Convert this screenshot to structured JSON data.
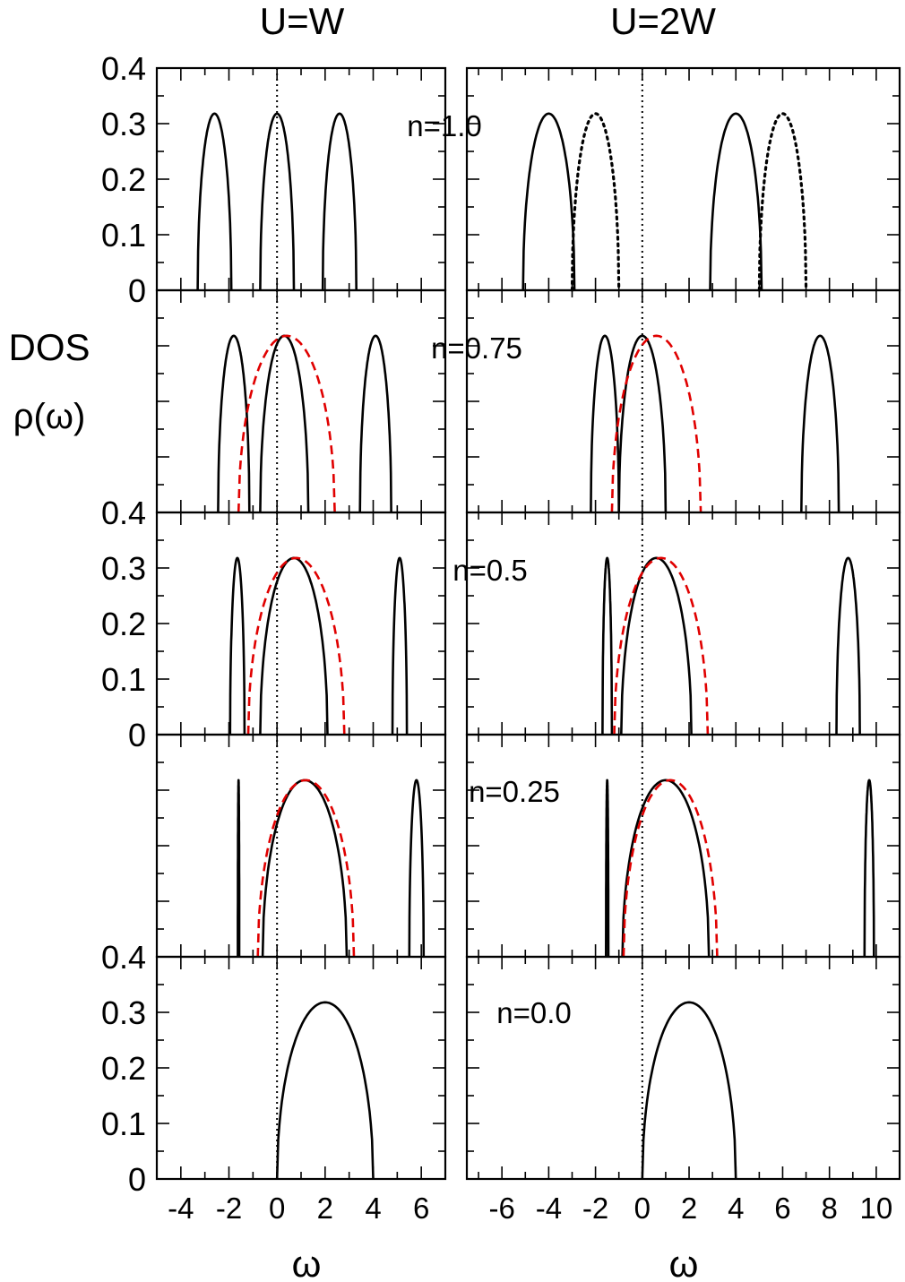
{
  "figure": {
    "y_axis_label_line1": "DOS",
    "y_axis_label_line2": "ρ(ω)",
    "x_axis_label": "ω"
  },
  "chart_data": [
    {
      "type": "line",
      "title": "U=W",
      "xlabel": "ω",
      "ylabel": "DOS ρ(ω)",
      "xlim": [
        -5.0,
        7.0
      ],
      "ylim": [
        0,
        0.4
      ],
      "x_ticks": [
        "-4",
        "-2",
        "0",
        "2",
        "4",
        "6"
      ],
      "y_ticks": [
        "0",
        "0.1",
        "0.2",
        "0.3",
        "0.4"
      ],
      "band_peak": 0.318,
      "panels": [
        {
          "label": "n=1.0",
          "bands": [
            {
              "style": "solid",
              "center": -2.6,
              "half_width": 0.7
            },
            {
              "style": "solid",
              "center": 0.0,
              "half_width": 0.7
            },
            {
              "style": "solid",
              "center": 2.6,
              "half_width": 0.7
            }
          ]
        },
        {
          "label": "n=0.75",
          "bands": [
            {
              "style": "solid",
              "center": -1.8,
              "half_width": 0.65
            },
            {
              "style": "solid",
              "center": 0.3,
              "half_width": 1.0
            },
            {
              "style": "solid",
              "center": 4.1,
              "half_width": 0.65
            },
            {
              "style": "dashed-red",
              "center": 0.4,
              "half_width": 2.0
            }
          ]
        },
        {
          "label": "n=0.5",
          "bands": [
            {
              "style": "solid",
              "center": -1.65,
              "half_width": 0.3
            },
            {
              "style": "solid",
              "center": 0.7,
              "half_width": 1.4
            },
            {
              "style": "solid",
              "center": 5.1,
              "half_width": 0.3
            },
            {
              "style": "dashed-red",
              "center": 0.8,
              "half_width": 2.0
            }
          ]
        },
        {
          "label": "n=0.25",
          "bands": [
            {
              "style": "solid",
              "center": -1.6,
              "half_width": 0.03
            },
            {
              "style": "solid",
              "center": 1.15,
              "half_width": 1.75
            },
            {
              "style": "solid",
              "center": 5.8,
              "half_width": 0.3
            },
            {
              "style": "dashed-red",
              "center": 1.2,
              "half_width": 2.0
            }
          ]
        },
        {
          "label": "n=0.0",
          "bands": [
            {
              "style": "solid",
              "center": 2.0,
              "half_width": 2.0
            }
          ]
        }
      ]
    },
    {
      "type": "line",
      "title": "U=2W",
      "xlabel": "ω",
      "ylabel": "DOS ρ(ω)",
      "xlim": [
        -7.5,
        11.0
      ],
      "ylim": [
        0,
        0.4
      ],
      "x_ticks": [
        "-6",
        "-4",
        "-2",
        "0",
        "2",
        "4",
        "6",
        "8",
        "10"
      ],
      "y_ticks": [],
      "band_peak": 0.318,
      "panels": [
        {
          "label": "n=1.0",
          "bands": [
            {
              "style": "solid",
              "center": -4.0,
              "half_width": 1.1
            },
            {
              "style": "dotted",
              "center": -2.0,
              "half_width": 1.0
            },
            {
              "style": "solid",
              "center": 4.0,
              "half_width": 1.1
            },
            {
              "style": "dotted",
              "center": 6.0,
              "half_width": 1.0
            }
          ]
        },
        {
          "label": "n=0.75",
          "bands": [
            {
              "style": "solid",
              "center": -1.6,
              "half_width": 0.6
            },
            {
              "style": "solid",
              "center": 0.0,
              "half_width": 1.0
            },
            {
              "style": "solid",
              "center": 7.6,
              "half_width": 0.8
            },
            {
              "style": "dashed-red",
              "center": 0.6,
              "half_width": 1.9
            }
          ]
        },
        {
          "label": "n=0.5",
          "bands": [
            {
              "style": "solid",
              "center": -1.5,
              "half_width": 0.2
            },
            {
              "style": "solid",
              "center": 0.6,
              "half_width": 1.5
            },
            {
              "style": "solid",
              "center": 8.8,
              "half_width": 0.5
            },
            {
              "style": "dashed-red",
              "center": 0.8,
              "half_width": 2.0
            }
          ]
        },
        {
          "label": "n=0.25",
          "bands": [
            {
              "style": "solid",
              "center": -1.5,
              "half_width": 0.05
            },
            {
              "style": "solid",
              "center": 1.0,
              "half_width": 1.85
            },
            {
              "style": "solid",
              "center": 9.7,
              "half_width": 0.2
            },
            {
              "style": "dashed-red",
              "center": 1.2,
              "half_width": 2.0
            }
          ]
        },
        {
          "label": "n=0.0",
          "bands": [
            {
              "style": "solid",
              "center": 2.0,
              "half_width": 2.0
            }
          ]
        }
      ]
    }
  ]
}
